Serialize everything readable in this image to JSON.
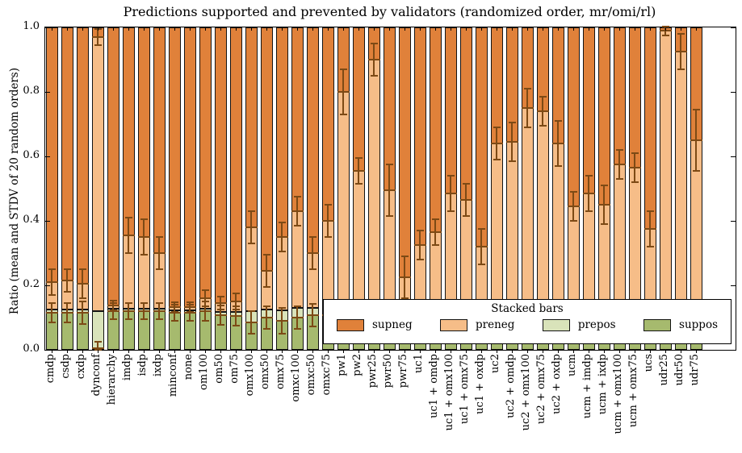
{
  "title": "Predictions supported and prevented by validators (randomized order, mr/omi/rl)",
  "ylabel": "Ratio (mean and STDV of 20 random orders)",
  "colors": {
    "supneg": "#e0813a",
    "preneg": "#f6bd88",
    "prepos": "#d9e3ba",
    "suppos": "#a6ba6e",
    "error_bar": "#7d4a15",
    "edge": "#141414",
    "background": "#ffffff"
  },
  "legend": {
    "title": "Stacked bars",
    "entries": [
      {
        "label": "supneg",
        "color_key": "supneg"
      },
      {
        "label": "preneg",
        "color_key": "preneg"
      },
      {
        "label": "prepos",
        "color_key": "prepos"
      },
      {
        "label": "suppos",
        "color_key": "suppos"
      }
    ]
  },
  "chart_data": {
    "type": "bar",
    "stacked": true,
    "title": "Predictions supported and prevented by validators (randomized order, mr/omi/rl)",
    "xlabel": "",
    "ylabel": "Ratio (mean and STDV of 20 random orders)",
    "ylim": [
      0.0,
      1.0
    ],
    "ytick_labels": [
      "0.0",
      "0.2",
      "0.4",
      "0.6",
      "0.8",
      "1.0"
    ],
    "ytick_values": [
      0.0,
      0.2,
      0.4,
      0.6,
      0.8,
      1.0
    ],
    "grid": false,
    "legend_position": "lower-right-inside",
    "series_order_bottom_to_top": [
      "suppos",
      "prepos",
      "preneg",
      "supneg"
    ],
    "note": "Each bar sums to 1.0; values below are cumulative segment tops read from the plot; err_bottom is the STDV whisker at the suppos/prepos boundary, err_mid at the preneg/supneg boundary.",
    "categories": [
      "cmdp",
      "csdp",
      "cxdp",
      "dynconf",
      "hierarchy",
      "imdp",
      "isdp",
      "ixdp",
      "minconf",
      "none",
      "om100",
      "om50",
      "om75",
      "omx100",
      "omx50",
      "omx75",
      "omxc100",
      "omxc50",
      "omxc75",
      "pw1",
      "pw2",
      "pwr25",
      "pwr50",
      "pwr75",
      "uc1",
      "uc1 + omdp",
      "uc1 + omx100",
      "uc1 + omx75",
      "uc1 + oxdp",
      "uc2",
      "uc2 + omdp",
      "uc2 + omx100",
      "uc2 + omx75",
      "uc2 + oxdp",
      "ucm",
      "ucm + imdp",
      "ucm + ixdp",
      "ucm + omx100",
      "ucm + omx75",
      "ucs",
      "udr25",
      "udr50",
      "udr75"
    ],
    "bars": [
      {
        "label": "cmdp",
        "suppos_top": 0.115,
        "prepos_top": 0.125,
        "preneg_top": 0.21,
        "err_bottom": 0.03,
        "err_mid": 0.04
      },
      {
        "label": "csdp",
        "suppos_top": 0.115,
        "prepos_top": 0.125,
        "preneg_top": 0.215,
        "err_bottom": 0.03,
        "err_mid": 0.035
      },
      {
        "label": "cxdp",
        "suppos_top": 0.115,
        "prepos_top": 0.125,
        "preneg_top": 0.205,
        "err_bottom": 0.035,
        "err_mid": 0.045
      },
      {
        "label": "dynconf",
        "suppos_top": 0.005,
        "prepos_top": 0.12,
        "preneg_top": 0.97,
        "err_bottom": 0.02,
        "err_mid": 0.025
      },
      {
        "label": "hierarchy",
        "suppos_top": 0.12,
        "prepos_top": 0.127,
        "preneg_top": 0.138,
        "err_bottom": 0.025,
        "err_mid": 0.015
      },
      {
        "label": "imdp",
        "suppos_top": 0.12,
        "prepos_top": 0.128,
        "preneg_top": 0.355,
        "err_bottom": 0.025,
        "err_mid": 0.055
      },
      {
        "label": "isdp",
        "suppos_top": 0.12,
        "prepos_top": 0.128,
        "preneg_top": 0.35,
        "err_bottom": 0.025,
        "err_mid": 0.055
      },
      {
        "label": "ixdp",
        "suppos_top": 0.12,
        "prepos_top": 0.128,
        "preneg_top": 0.3,
        "err_bottom": 0.025,
        "err_mid": 0.05
      },
      {
        "label": "minconf",
        "suppos_top": 0.115,
        "prepos_top": 0.122,
        "preneg_top": 0.132,
        "err_bottom": 0.025,
        "err_mid": 0.015
      },
      {
        "label": "none",
        "suppos_top": 0.115,
        "prepos_top": 0.122,
        "preneg_top": 0.132,
        "err_bottom": 0.025,
        "err_mid": 0.015
      },
      {
        "label": "om100",
        "suppos_top": 0.12,
        "prepos_top": 0.128,
        "preneg_top": 0.16,
        "err_bottom": 0.03,
        "err_mid": 0.025
      },
      {
        "label": "om50",
        "suppos_top": 0.108,
        "prepos_top": 0.118,
        "preneg_top": 0.145,
        "err_bottom": 0.03,
        "err_mid": 0.02
      },
      {
        "label": "om75",
        "suppos_top": 0.105,
        "prepos_top": 0.118,
        "preneg_top": 0.15,
        "err_bottom": 0.03,
        "err_mid": 0.025
      },
      {
        "label": "omx100",
        "suppos_top": 0.085,
        "prepos_top": 0.12,
        "preneg_top": 0.38,
        "err_bottom": 0.035,
        "err_mid": 0.05
      },
      {
        "label": "omx50",
        "suppos_top": 0.1,
        "prepos_top": 0.125,
        "preneg_top": 0.245,
        "err_bottom": 0.035,
        "err_mid": 0.05
      },
      {
        "label": "omx75",
        "suppos_top": 0.09,
        "prepos_top": 0.122,
        "preneg_top": 0.35,
        "err_bottom": 0.04,
        "err_mid": 0.045
      },
      {
        "label": "omxc100",
        "suppos_top": 0.1,
        "prepos_top": 0.13,
        "preneg_top": 0.43,
        "err_bottom": 0.035,
        "err_mid": 0.045
      },
      {
        "label": "omxc50",
        "suppos_top": 0.108,
        "prepos_top": 0.13,
        "preneg_top": 0.3,
        "err_bottom": 0.035,
        "err_mid": 0.05
      },
      {
        "label": "omxc75",
        "suppos_top": 0.108,
        "prepos_top": 0.13,
        "preneg_top": 0.4,
        "err_bottom": 0.03,
        "err_mid": 0.05
      },
      {
        "label": "pw1",
        "suppos_top": 0.115,
        "prepos_top": 0.125,
        "preneg_top": 0.8,
        "err_bottom": 0.03,
        "err_mid": 0.07
      },
      {
        "label": "pw2",
        "suppos_top": 0.115,
        "prepos_top": 0.125,
        "preneg_top": 0.555,
        "err_bottom": 0.03,
        "err_mid": 0.04
      },
      {
        "label": "pwr25",
        "suppos_top": 0.115,
        "prepos_top": 0.125,
        "preneg_top": 0.9,
        "err_bottom": 0.03,
        "err_mid": 0.05
      },
      {
        "label": "pwr50",
        "suppos_top": 0.115,
        "prepos_top": 0.125,
        "preneg_top": 0.495,
        "err_bottom": 0.03,
        "err_mid": 0.08
      },
      {
        "label": "pwr75",
        "suppos_top": 0.115,
        "prepos_top": 0.125,
        "preneg_top": 0.225,
        "err_bottom": 0.03,
        "err_mid": 0.065
      },
      {
        "label": "uc1",
        "suppos_top": 0.115,
        "prepos_top": 0.125,
        "preneg_top": 0.325,
        "err_bottom": 0.03,
        "err_mid": 0.045
      },
      {
        "label": "uc1 + omdp",
        "suppos_top": 0.115,
        "prepos_top": 0.125,
        "preneg_top": 0.365,
        "err_bottom": 0.03,
        "err_mid": 0.04
      },
      {
        "label": "uc1 + omx100",
        "suppos_top": 0.115,
        "prepos_top": 0.125,
        "preneg_top": 0.485,
        "err_bottom": 0.03,
        "err_mid": 0.055
      },
      {
        "label": "uc1 + omx75",
        "suppos_top": 0.115,
        "prepos_top": 0.125,
        "preneg_top": 0.465,
        "err_bottom": 0.03,
        "err_mid": 0.05
      },
      {
        "label": "uc1 + oxdp",
        "suppos_top": 0.115,
        "prepos_top": 0.125,
        "preneg_top": 0.32,
        "err_bottom": 0.03,
        "err_mid": 0.055
      },
      {
        "label": "uc2",
        "suppos_top": 0.115,
        "prepos_top": 0.125,
        "preneg_top": 0.64,
        "err_bottom": 0.03,
        "err_mid": 0.05
      },
      {
        "label": "uc2 + omdp",
        "suppos_top": 0.115,
        "prepos_top": 0.125,
        "preneg_top": 0.645,
        "err_bottom": 0.03,
        "err_mid": 0.06
      },
      {
        "label": "uc2 + omx100",
        "suppos_top": 0.115,
        "prepos_top": 0.125,
        "preneg_top": 0.75,
        "err_bottom": 0.03,
        "err_mid": 0.06
      },
      {
        "label": "uc2 + omx75",
        "suppos_top": 0.115,
        "prepos_top": 0.125,
        "preneg_top": 0.74,
        "err_bottom": 0.03,
        "err_mid": 0.045
      },
      {
        "label": "uc2 + oxdp",
        "suppos_top": 0.115,
        "prepos_top": 0.125,
        "preneg_top": 0.64,
        "err_bottom": 0.03,
        "err_mid": 0.07
      },
      {
        "label": "ucm",
        "suppos_top": 0.115,
        "prepos_top": 0.125,
        "preneg_top": 0.445,
        "err_bottom": 0.03,
        "err_mid": 0.045
      },
      {
        "label": "ucm + imdp",
        "suppos_top": 0.115,
        "prepos_top": 0.125,
        "preneg_top": 0.485,
        "err_bottom": 0.03,
        "err_mid": 0.055
      },
      {
        "label": "ucm + ixdp",
        "suppos_top": 0.115,
        "prepos_top": 0.125,
        "preneg_top": 0.45,
        "err_bottom": 0.03,
        "err_mid": 0.06
      },
      {
        "label": "ucm + omx100",
        "suppos_top": 0.115,
        "prepos_top": 0.125,
        "preneg_top": 0.575,
        "err_bottom": 0.03,
        "err_mid": 0.045
      },
      {
        "label": "ucm + omx75",
        "suppos_top": 0.115,
        "prepos_top": 0.125,
        "preneg_top": 0.565,
        "err_bottom": 0.03,
        "err_mid": 0.045
      },
      {
        "label": "ucs",
        "suppos_top": 0.115,
        "prepos_top": 0.125,
        "preneg_top": 0.375,
        "err_bottom": 0.03,
        "err_mid": 0.055
      },
      {
        "label": "udr25",
        "suppos_top": 0.115,
        "prepos_top": 0.125,
        "preneg_top": 0.99,
        "err_bottom": 0.03,
        "err_mid": 0.015
      },
      {
        "label": "udr50",
        "suppos_top": 0.115,
        "prepos_top": 0.125,
        "preneg_top": 0.925,
        "err_bottom": 0.03,
        "err_mid": 0.055
      },
      {
        "label": "udr75",
        "suppos_top": 0.115,
        "prepos_top": 0.125,
        "preneg_top": 0.65,
        "err_bottom": 0.03,
        "err_mid": 0.095
      }
    ]
  }
}
